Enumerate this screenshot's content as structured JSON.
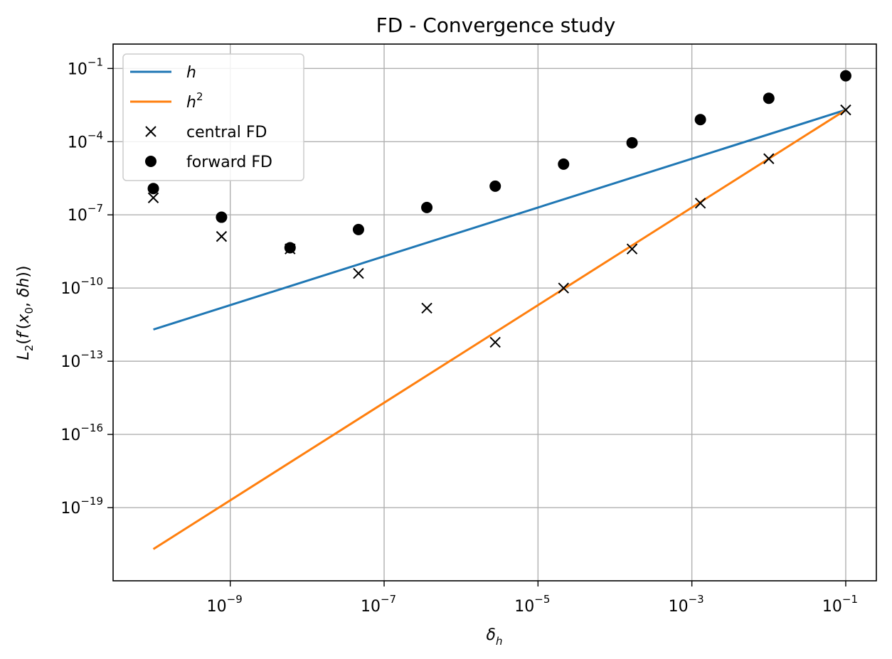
{
  "chart_data": {
    "type": "line",
    "title": "FD - Convergence study",
    "xlabel": "δ_h",
    "ylabel": "L_2(f′(x_0, δh))",
    "xscale": "log",
    "yscale": "log",
    "xlim": [
      3e-11,
      0.25
    ],
    "ylim": [
      1e-22,
      1
    ],
    "grid": true,
    "legend_position": "top-left",
    "x_ticks": [
      {
        "value": 1e-09,
        "base": "10",
        "exp": "−9"
      },
      {
        "value": 1e-07,
        "base": "10",
        "exp": "−7"
      },
      {
        "value": 1e-05,
        "base": "10",
        "exp": "−5"
      },
      {
        "value": 0.001,
        "base": "10",
        "exp": "−3"
      },
      {
        "value": 0.1,
        "base": "10",
        "exp": "−1"
      }
    ],
    "y_ticks": [
      {
        "value": 0.1,
        "base": "10",
        "exp": "−1"
      },
      {
        "value": 0.0001,
        "base": "10",
        "exp": "−4"
      },
      {
        "value": 1e-07,
        "base": "10",
        "exp": "−7"
      },
      {
        "value": 1e-10,
        "base": "10",
        "exp": "−10"
      },
      {
        "value": 1e-13,
        "base": "10",
        "exp": "−13"
      },
      {
        "value": 1e-16,
        "base": "10",
        "exp": "−16"
      },
      {
        "value": 1e-19,
        "base": "10",
        "exp": "−19"
      }
    ],
    "series": [
      {
        "name": "h",
        "kind": "line",
        "color": "#1f77b4",
        "x": [
          1e-10,
          0.1
        ],
        "y": [
          2e-12,
          0.002
        ]
      },
      {
        "name": "h²",
        "kind": "line",
        "color": "#ff7f0e",
        "x": [
          1e-10,
          0.1
        ],
        "y": [
          2e-21,
          0.002
        ]
      },
      {
        "name": "central FD",
        "kind": "marker",
        "marker": "x",
        "color": "#000000",
        "x": [
          1e-10,
          7.7e-10,
          5.99e-09,
          4.64e-08,
          3.59e-07,
          2.78e-06,
          2.15e-05,
          0.000167,
          0.00129,
          0.01,
          0.1
        ],
        "y": [
          5e-07,
          1.3e-08,
          4e-09,
          4e-10,
          1.5e-11,
          6e-13,
          1e-10,
          4e-09,
          3e-07,
          2e-05,
          0.002
        ]
      },
      {
        "name": "forward FD",
        "kind": "marker",
        "marker": "o",
        "color": "#000000",
        "x": [
          1e-10,
          7.7e-10,
          5.99e-09,
          4.64e-08,
          3.59e-07,
          2.78e-06,
          2.15e-05,
          0.000167,
          0.00129,
          0.01,
          0.1
        ],
        "y": [
          1.2e-06,
          8e-08,
          4.5e-09,
          2.5e-08,
          2e-07,
          1.5e-06,
          1.2e-05,
          9e-05,
          0.0008,
          0.006,
          0.05
        ]
      }
    ]
  }
}
